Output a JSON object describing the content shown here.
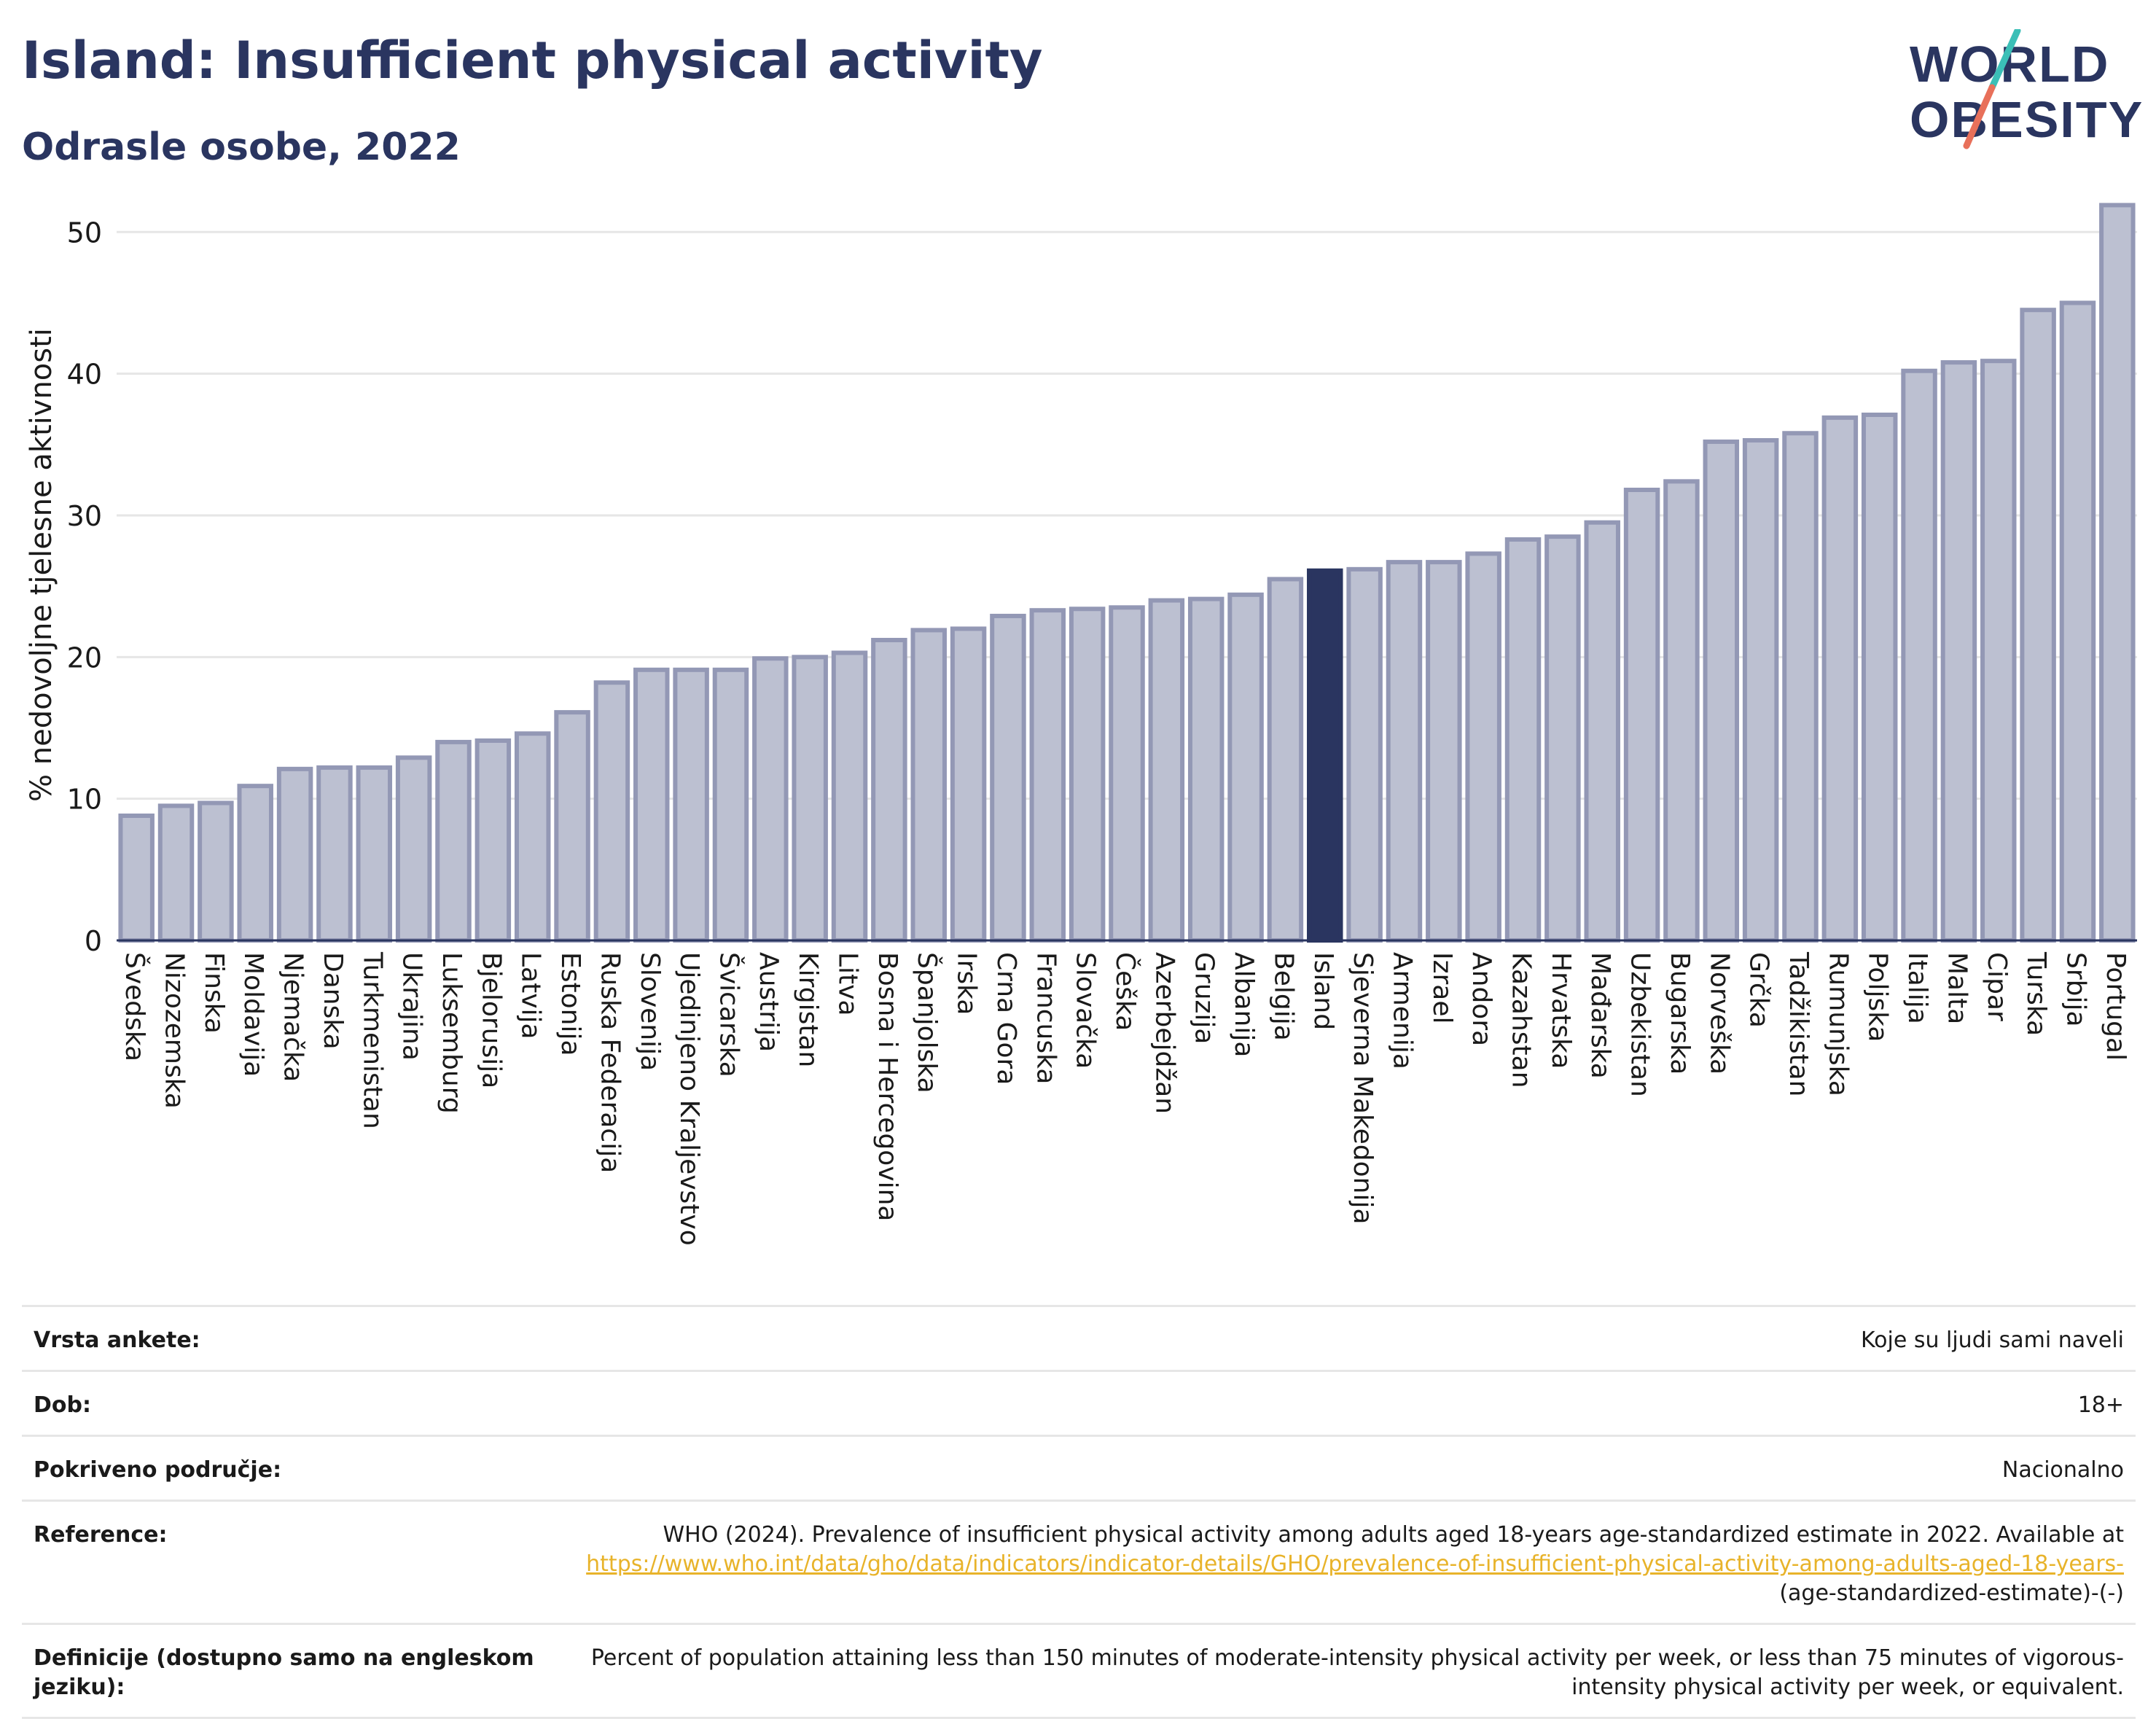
{
  "header": {
    "title": "Island: Insufficient physical activity",
    "subtitle": "Odrasle osobe, 2022"
  },
  "logo": {
    "line1": "WORLD",
    "line2": "OBESITY",
    "colors": {
      "text": "#2a3560",
      "slash_top": "#3bbfb7",
      "slash_bottom": "#e8705a"
    }
  },
  "chart_data": {
    "type": "bar",
    "ylabel": "% nedovoljne tjelesne aktivnosti",
    "ylim": [
      0,
      53
    ],
    "yticks": [
      0,
      10,
      20,
      30,
      40,
      50
    ],
    "grid": true,
    "highlight": "Island",
    "colors": {
      "bar": "#bcc0d1",
      "bar_edge": "#9398b5",
      "highlight": "#2a3560",
      "grid": "#e6e6e6"
    },
    "categories": [
      "Švedska",
      "Nizozemska",
      "Finska",
      "Moldavija",
      "Njemačka",
      "Danska",
      "Turkmenistan",
      "Ukrajina",
      "Luksemburg",
      "Bjelorusija",
      "Latvija",
      "Estonija",
      "Ruska Federacija",
      "Slovenija",
      "Ujedinjeno Kraljevstvo",
      "Švicarska",
      "Austrija",
      "Kirgistan",
      "Litva",
      "Bosna i Hercegovina",
      "Španjolska",
      "Irska",
      "Crna Gora",
      "Francuska",
      "Slovačka",
      "Češka",
      "Azerbejdžan",
      "Gruzija",
      "Albanija",
      "Belgija",
      "Island",
      "Sjeverna Makedonija",
      "Armenija",
      "Izrael",
      "Andora",
      "Kazahstan",
      "Hrvatska",
      "Mađarska",
      "Uzbekistan",
      "Bugarska",
      "Norveška",
      "Grčka",
      "Tadžikistan",
      "Rumunjska",
      "Poljska",
      "Italija",
      "Malta",
      "Cipar",
      "Turska",
      "Srbija",
      "Portugal"
    ],
    "values": [
      8.8,
      9.5,
      9.7,
      10.9,
      12.1,
      12.2,
      12.2,
      12.9,
      14.0,
      14.1,
      14.6,
      16.1,
      18.2,
      19.1,
      19.1,
      19.1,
      19.9,
      20.0,
      20.3,
      21.2,
      21.9,
      22.0,
      22.9,
      23.3,
      23.4,
      23.5,
      24.0,
      24.1,
      24.4,
      25.5,
      26.1,
      26.2,
      26.7,
      26.7,
      27.3,
      28.3,
      28.5,
      29.5,
      31.8,
      32.4,
      35.2,
      35.3,
      35.8,
      36.9,
      37.1,
      40.2,
      40.8,
      40.9,
      44.5,
      45.0,
      51.9
    ]
  },
  "meta": {
    "rows": [
      {
        "label": "Vrsta ankete:",
        "value": "Koje su ljudi sami naveli"
      },
      {
        "label": "Dob:",
        "value": "18+"
      },
      {
        "label": "Pokriveno područje:",
        "value": "Nacionalno"
      },
      {
        "label": "Reference:",
        "value_prefix": "WHO (2024). Prevalence of insufficient physical activity among adults aged 18-years age-standardized estimate in 2022. Available at",
        "link": "https://www.who.int/data/gho/data/indicators/indicator-details/GHO/prevalence-of-insufficient-physical-activity-among-adults-aged-18-years-",
        "value_suffix": "(age-standardized-estimate)-(-)"
      },
      {
        "label": "Definicije (dostupno samo na engleskom jeziku):",
        "value": "Percent of population attaining less than 150 minutes of moderate-intensity physical activity per week, or less than 75 minutes of vigorous-intensity physical activity per week, or equivalent."
      }
    ]
  }
}
